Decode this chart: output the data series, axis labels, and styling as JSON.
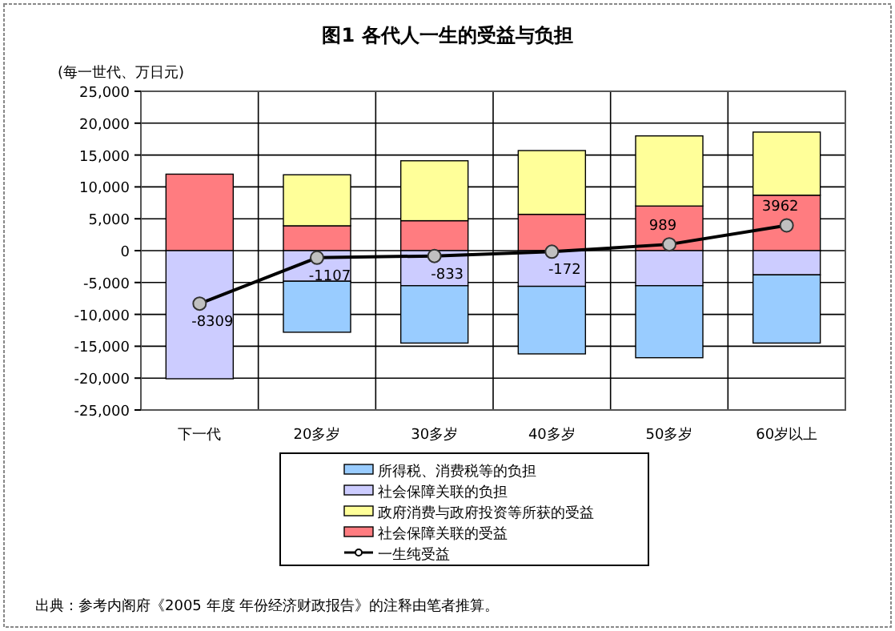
{
  "chart_data": {
    "type": "bar",
    "title": "图1  各代人一生的受益与负担",
    "ylabel": "(每一世代、万日元)",
    "categories": [
      "下一代",
      "20多岁",
      "30多岁",
      "40多岁",
      "50多岁",
      "60岁以上"
    ],
    "stacked": true,
    "series": [
      {
        "name": "社会保障关联的受益",
        "color": "#ff7c80",
        "values": [
          12000,
          3900,
          4700,
          5700,
          7000,
          8700
        ]
      },
      {
        "name": "政府消费与政府投资等所获的受益",
        "color": "#ffff99",
        "values": [
          null,
          8000,
          9400,
          10000,
          11000,
          9900
        ]
      },
      {
        "name": "社会保障关联的负担",
        "color": "#ccccff",
        "values": [
          -20100,
          -4800,
          -5500,
          -5600,
          -5500,
          -3800
        ]
      },
      {
        "name": "所得税、消费税等的负担",
        "color": "#99ccff",
        "values": [
          null,
          -8000,
          -9000,
          -10600,
          -11300,
          -10700
        ]
      },
      {
        "name": "一生纯受益",
        "type": "line",
        "color": "#000000",
        "marker": "circle",
        "values": [
          -8309,
          -1107,
          -833,
          -172,
          989,
          3962
        ],
        "value_labels": [
          "-8309",
          "-1107",
          "-833",
          "-172",
          "989",
          "3962"
        ]
      }
    ],
    "ylim": [
      -25000,
      25000
    ],
    "yticks": [
      {
        "value": -25000,
        "label": "-25,000"
      },
      {
        "value": -20000,
        "label": "-20,000"
      },
      {
        "value": -15000,
        "label": "-15,000"
      },
      {
        "value": -10000,
        "label": "-10,000"
      },
      {
        "value": -5000,
        "label": "-5,000"
      },
      0,
      {
        "value": 5000,
        "label": "5,000"
      },
      {
        "value": 10000,
        "label": "10,000"
      },
      {
        "value": 15000,
        "label": "15,000"
      },
      {
        "value": 20000,
        "label": "20,000"
      },
      {
        "value": 25000,
        "label": "25,000"
      }
    ],
    "grid": true,
    "legend": "bottom",
    "annotations": [
      "出典：参考内阁府《2005 年度 年份经济财政报告》的注释由笔者推算。"
    ]
  }
}
